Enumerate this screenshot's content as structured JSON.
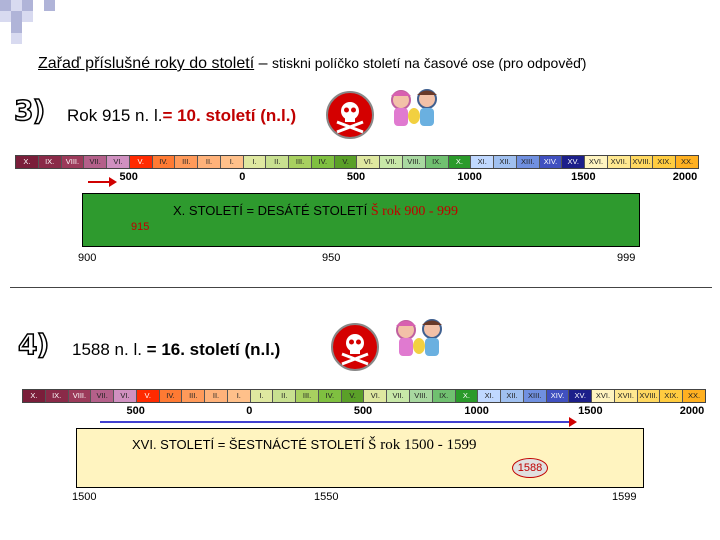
{
  "title": {
    "instruction": "Zařaď příslušné roky do století",
    "dash": " – ",
    "hint": "stiskni políčko století na časové ose (pro odpověď)"
  },
  "timeline_cells": [
    "X.",
    "IX.",
    "VIII.",
    "VII.",
    "VI.",
    "V.",
    "IV.",
    "III.",
    "II.",
    "I.",
    "I.",
    "II.",
    "III.",
    "IV.",
    "V.",
    "VI.",
    "VII.",
    "VIII.",
    "IX.",
    "X.",
    "XI.",
    "XII.",
    "XIII.",
    "XIV.",
    "XV.",
    "XVI.",
    "XVII.",
    "XVIII.",
    "XIX.",
    "XX."
  ],
  "timeline_colors": [
    "#7a1e3a",
    "#8a2a48",
    "#9c3a5a",
    "#b4608a",
    "#d090c0",
    "#ff2a00",
    "#ff7a33",
    "#ff9a5a",
    "#ffb27a",
    "#ffc08a",
    "#dfe8a0",
    "#c8e090",
    "#a8d060",
    "#7fc040",
    "#5aa028",
    "#dfe8a0",
    "#c8e8a8",
    "#a8d8a0",
    "#70c070",
    "#2a9a2a",
    "#c0d8ff",
    "#a0c0f0",
    "#7090e0",
    "#4050c0",
    "#1c1f8a",
    "#fff4c0",
    "#ffe890",
    "#ffd860",
    "#ffcc40",
    "#ffb020"
  ],
  "tick_labels": [
    "500",
    "0",
    "500",
    "1000",
    "1500",
    "2000"
  ],
  "ex3": {
    "number": "3)",
    "question": "Rok 915 n. l.",
    "answer": "= 10. století (n.l.)",
    "century_text": "X. STOLETÍ  = DESÁTÉ STOLETÍ",
    "symbol": "Š",
    "range": " rok 900 - 999",
    "year_marker": "915",
    "start_label": "900",
    "mid_label": "950",
    "end_label": "999",
    "box_color": "#2e9a2e"
  },
  "ex4": {
    "number": "4)",
    "question": "1588 n. l.",
    "answer": "  = 16. století (n.l.)",
    "century_text": "XVI. STOLETÍ  = ŠESTNÁCTÉ STOLETÍ",
    "symbol": "Š",
    "range": " rok 1500 - 1599",
    "year_marker": "1588",
    "start_label": "1500",
    "mid_label": "1550",
    "end_label": "1599",
    "box_color": "#fff4c0"
  },
  "icons": {
    "skull": "skull-crossbones-icon",
    "kids": "children-icon"
  }
}
